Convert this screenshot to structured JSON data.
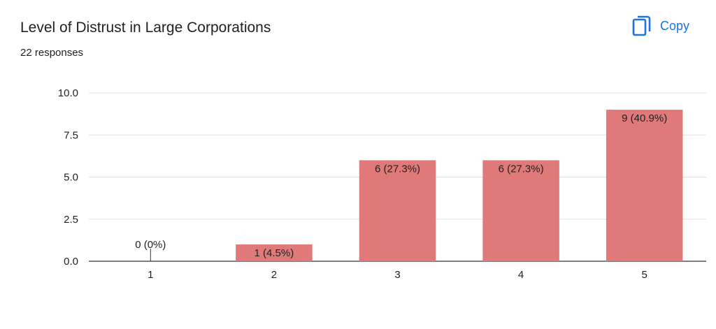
{
  "header": {
    "title": "Level of Distrust in Large Corporations",
    "responses": "22 responses",
    "copy_label": "Copy",
    "copy_icon": "copy-icon",
    "accent_color": "#1a73e8"
  },
  "chart_data": {
    "type": "bar",
    "title": "Level of Distrust in Large Corporations",
    "xlabel": "",
    "ylabel": "",
    "categories": [
      "1",
      "2",
      "3",
      "4",
      "5"
    ],
    "values": [
      0,
      1,
      6,
      6,
      9
    ],
    "data_labels": [
      "0 (0%)",
      "1 (4.5%)",
      "6 (27.3%)",
      "6 (27.3%)",
      "9 (40.9%)"
    ],
    "ylim": [
      0,
      10
    ],
    "yticks": [
      "0.0",
      "2.5",
      "5.0",
      "7.5",
      "10.0"
    ],
    "ytick_values": [
      0,
      2.5,
      5,
      7.5,
      10
    ],
    "grid": true,
    "bar_color": "#e07a7a"
  }
}
